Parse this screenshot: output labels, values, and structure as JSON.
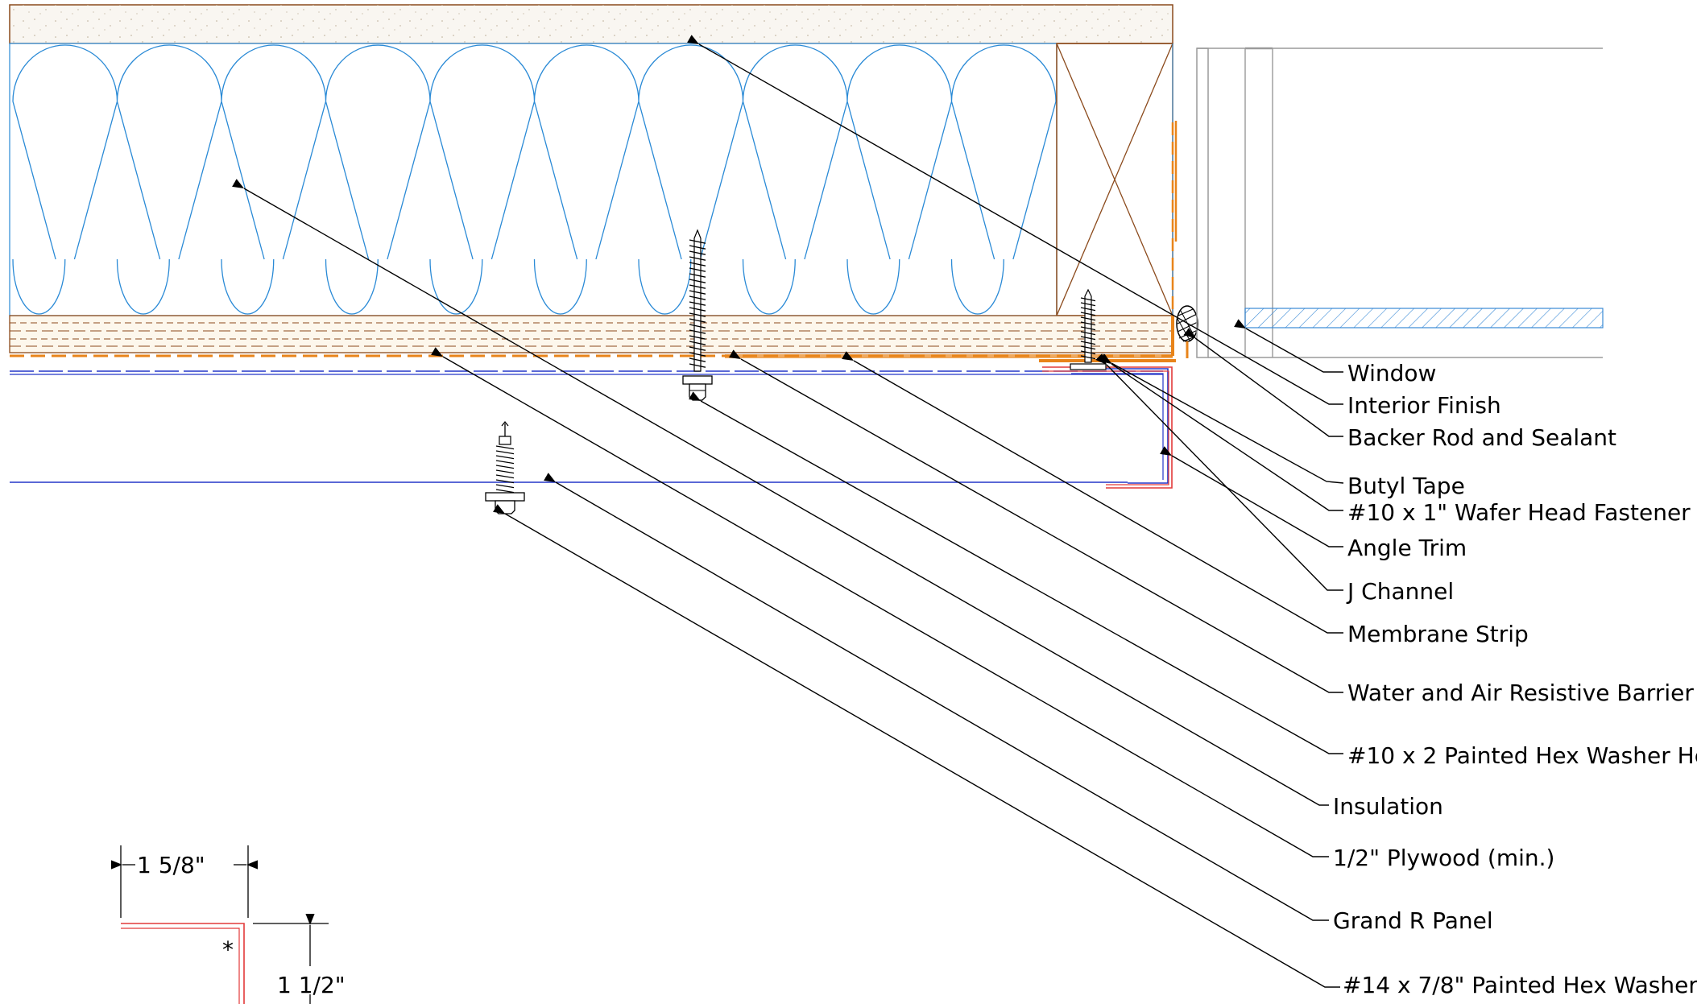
{
  "colors": {
    "insulation": "#2a8ad6",
    "wood": "#8b4a1c",
    "membrane": "#e8841a",
    "channel": "#2436c8",
    "trim": "#e23a3a",
    "window": "#9a9a9a",
    "glass_hatch": "#3a8ad6",
    "sheathing_fill": "#fdf7ec",
    "finish_fill": "#f9f6f1"
  },
  "icons": [
    "screw-icon",
    "hex-washer-fastener-icon",
    "wafer-head-fastener-icon",
    "backer-rod-icon",
    "stud-cross-icon"
  ],
  "callouts": [
    {
      "id": "window",
      "label": "Window"
    },
    {
      "id": "interior-finish",
      "label": "Interior Finish"
    },
    {
      "id": "backer-rod",
      "label": "Backer Rod and Sealant"
    },
    {
      "id": "butyl-tape",
      "label": "Butyl Tape"
    },
    {
      "id": "wafer-fastener",
      "label": "#10 x 1\" Wafer Head Fastener"
    },
    {
      "id": "angle-trim",
      "label": "Angle Trim"
    },
    {
      "id": "j-channel",
      "label": "J Channel"
    },
    {
      "id": "membrane-strip",
      "label": "Membrane Strip"
    },
    {
      "id": "wrb",
      "label": "Water and Air Resistive Barrier"
    },
    {
      "id": "hex10",
      "label": "#10 x 2 Painted Hex Washer He"
    },
    {
      "id": "insulation",
      "label": "Insulation"
    },
    {
      "id": "plywood",
      "label": "1/2\" Plywood (min.)"
    },
    {
      "id": "panel",
      "label": "Grand R Panel"
    },
    {
      "id": "hex14",
      "label": "#14 x 7/8\" Painted Hex Washer"
    }
  ],
  "dimensions": {
    "width": "1 5/8\"",
    "height": "1 1/2\"",
    "asterisk": "*"
  }
}
